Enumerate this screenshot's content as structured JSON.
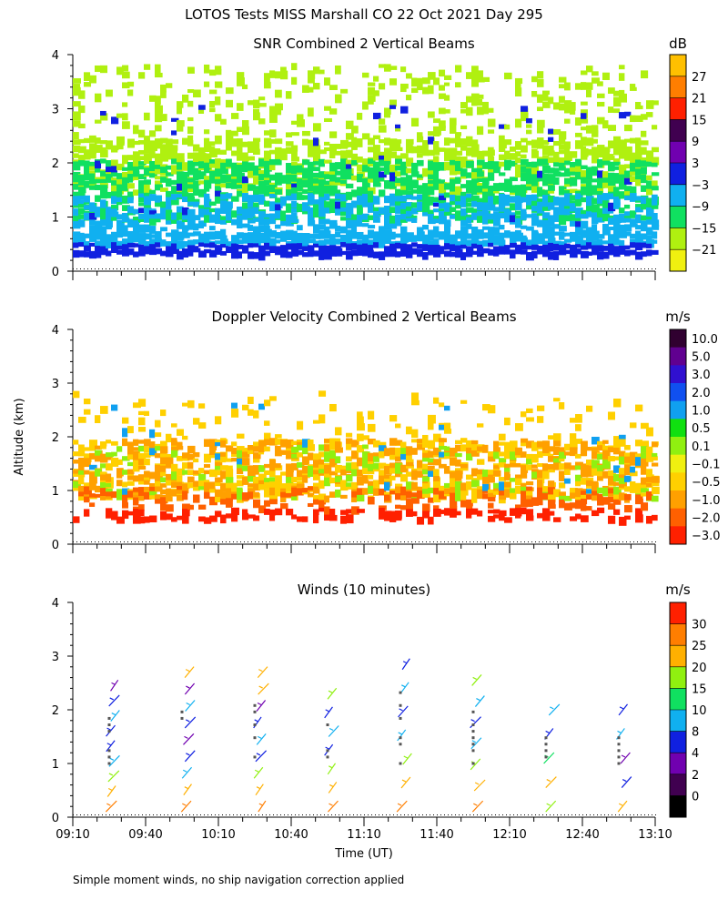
{
  "figure": {
    "title": "LOTOS Tests MISS Marshall CO  22 Oct 2021 Day 295",
    "footnote": "Simple moment winds, no ship navigation correction applied",
    "ylabel": "Altitude (km)",
    "xlabel": "Time (UT)",
    "x_ticks": [
      "09:10",
      "09:40",
      "10:10",
      "10:40",
      "11:10",
      "11:40",
      "12:10",
      "12:40",
      "13:10"
    ],
    "y_ticks": [
      "0",
      "1",
      "2",
      "3",
      "4"
    ]
  },
  "chart_data": [
    {
      "type": "heatmap",
      "title": "SNR Combined 2 Vertical Beams",
      "units": "dB",
      "ylim": [
        0,
        4
      ],
      "x_range": [
        "09:10",
        "13:10"
      ],
      "colorbar": {
        "labels": [
          "27",
          "21",
          "15",
          "9",
          "3",
          "−3",
          "−9",
          "−15",
          "−21"
        ],
        "colors": [
          "#ffc000",
          "#ff7e00",
          "#ff2000",
          "#400050",
          "#7000b0",
          "#1020e0",
          "#10b0f0",
          "#10e060",
          "#b0f010",
          "#f0f010"
        ]
      },
      "layers_km": [
        {
          "level": "3",
          "alt": [
            0.25,
            0.45
          ]
        },
        {
          "level": "-3",
          "alt": [
            0.45,
            0.65
          ]
        },
        {
          "level": "-9",
          "alt": [
            0.65,
            1.2
          ]
        },
        {
          "level": "-15",
          "alt": [
            1.0,
            2.0
          ]
        },
        {
          "level": "-21",
          "alt": [
            1.5,
            3.8
          ]
        }
      ]
    },
    {
      "type": "heatmap",
      "title": "Doppler Velocity Combined 2 Vertical Beams",
      "units": "m/s",
      "ylim": [
        0,
        4
      ],
      "x_range": [
        "09:10",
        "13:10"
      ],
      "colorbar": {
        "labels": [
          "10.0",
          "5.0",
          "3.0",
          "2.0",
          "1.0",
          "0.5",
          "0.1",
          "−0.1",
          "−0.5",
          "−1.0",
          "−2.0",
          "−3.0"
        ],
        "colors": [
          "#300030",
          "#600090",
          "#3010d0",
          "#1050f0",
          "#10a0f0",
          "#10e010",
          "#90f010",
          "#f0f010",
          "#ffd000",
          "#ffa000",
          "#ff6000",
          "#ff2000"
        ]
      },
      "dominant_values": [
        -0.5,
        -1.0,
        0.1
      ],
      "altitude_range_km": [
        0.3,
        3.0
      ]
    },
    {
      "type": "scatter",
      "title": "Winds (10 minutes)",
      "units": "m/s",
      "ylim": [
        0,
        4
      ],
      "x": [
        "09:25",
        "09:55",
        "10:25",
        "10:55",
        "11:25",
        "11:55",
        "12:25",
        "12:55"
      ],
      "profiles": [
        {
          "time": "09:25",
          "top_km": 2.35,
          "speeds": [
            25,
            20,
            15,
            8,
            5,
            5,
            8,
            5,
            2
          ]
        },
        {
          "time": "09:55",
          "top_km": 2.6,
          "speeds": [
            25,
            20,
            8,
            5,
            2,
            5,
            8,
            2,
            20
          ]
        },
        {
          "time": "10:25",
          "top_km": 2.6,
          "speeds": [
            25,
            20,
            15,
            5,
            8,
            5,
            2,
            20,
            20
          ]
        },
        {
          "time": "10:55",
          "top_km": 2.2,
          "speeds": [
            25,
            20,
            15,
            5,
            8,
            5,
            15
          ]
        },
        {
          "time": "11:25",
          "top_km": 2.75,
          "speeds": [
            25,
            20,
            15,
            8,
            5,
            8,
            5
          ]
        },
        {
          "time": "11:55",
          "top_km": 2.45,
          "speeds": [
            25,
            20,
            15,
            8,
            5,
            8,
            15
          ]
        },
        {
          "time": "12:25",
          "top_km": 1.9,
          "speeds": [
            15,
            20,
            10,
            5,
            8
          ]
        },
        {
          "time": "12:55",
          "top_km": 1.9,
          "speeds": [
            20,
            5,
            2,
            8,
            5
          ]
        }
      ],
      "colorbar": {
        "labels": [
          "30",
          "25",
          "20",
          "15",
          "10",
          "8",
          "4",
          "2",
          "0"
        ],
        "colors": [
          "#ff2000",
          "#ff7e00",
          "#ffb000",
          "#90f010",
          "#10e060",
          "#10b0f0",
          "#1020e0",
          "#7000b0",
          "#400050",
          "#000000"
        ]
      }
    }
  ]
}
